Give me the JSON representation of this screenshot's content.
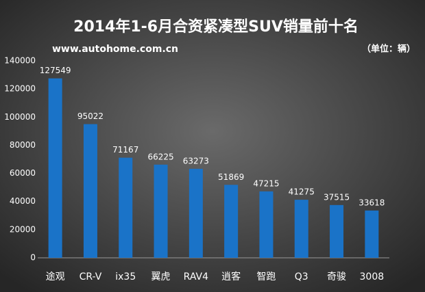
{
  "chart_data": {
    "type": "bar",
    "title": "2014年1-6月合资紧凑型SUV销量前十名",
    "subtitle": "www.autohome.com.cn",
    "unit": "（单位：辆）",
    "categories": [
      "途观",
      "CR-V",
      "ix35",
      "翼虎",
      "RAV4",
      "逍客",
      "智跑",
      "Q3",
      "奇骏",
      "3008"
    ],
    "values": [
      127549,
      95022,
      71167,
      66225,
      63273,
      51869,
      47215,
      41275,
      37515,
      33618
    ],
    "color": "#1a73c8",
    "ylim": [
      0,
      140000
    ],
    "yticks": [
      0,
      20000,
      40000,
      60000,
      80000,
      100000,
      120000,
      140000
    ],
    "grid": false
  }
}
